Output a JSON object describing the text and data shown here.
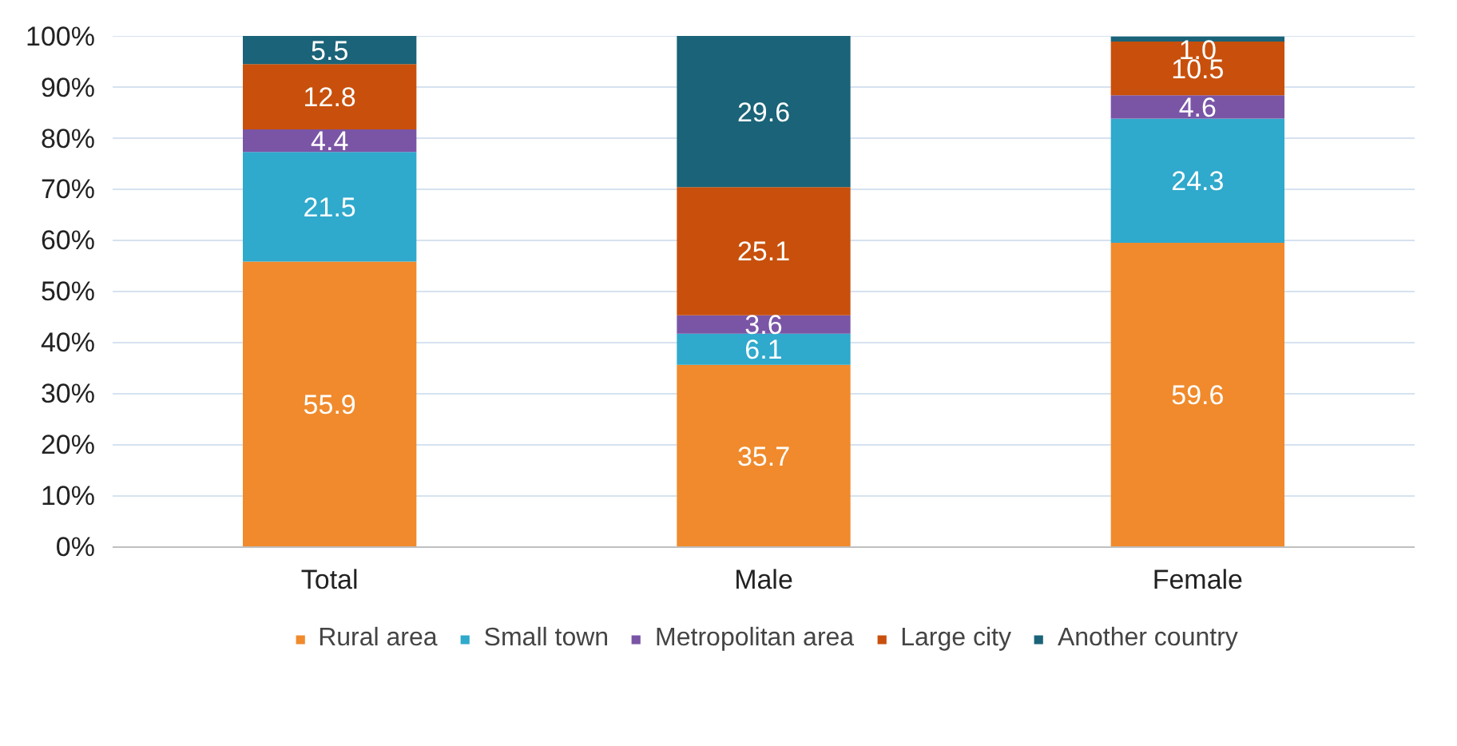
{
  "chart_data": {
    "type": "bar",
    "stacked": true,
    "categories": [
      "Total",
      "Male",
      "Female"
    ],
    "series": [
      {
        "name": "Rural area",
        "color": "#f08a2c",
        "values": [
          55.9,
          35.7,
          59.6
        ],
        "value_labels": [
          "55.9",
          "35.7",
          "59.6"
        ]
      },
      {
        "name": "Small town",
        "color": "#2fa9cc",
        "values": [
          21.5,
          6.1,
          24.3
        ],
        "value_labels": [
          "21.5",
          "6.1",
          "24.3"
        ]
      },
      {
        "name": "Metropolitan area",
        "color": "#7a55a6",
        "values": [
          4.4,
          3.6,
          4.6
        ],
        "value_labels": [
          "4.4",
          "3.6",
          "4.6"
        ]
      },
      {
        "name": "Large city",
        "color": "#c8500c",
        "values": [
          12.8,
          25.1,
          10.5
        ],
        "value_labels": [
          "12.8",
          "25.1",
          "10.5"
        ]
      },
      {
        "name": "Another country",
        "color": "#1a6378",
        "values": [
          5.5,
          29.6,
          1.0
        ],
        "value_labels": [
          "5.5",
          "29.6",
          "1.0"
        ]
      }
    ],
    "ylim": [
      0,
      100.1
    ],
    "yticks": [
      {
        "value": 0,
        "label": "0%"
      },
      {
        "value": 10,
        "label": "10%"
      },
      {
        "value": 20,
        "label": "20%"
      },
      {
        "value": 30,
        "label": "30%"
      },
      {
        "value": 40,
        "label": "40%"
      },
      {
        "value": 50,
        "label": "50%"
      },
      {
        "value": 60,
        "label": "60%"
      },
      {
        "value": 70,
        "label": "70%"
      },
      {
        "value": 80,
        "label": "80%"
      },
      {
        "value": 90,
        "label": "90%"
      },
      {
        "value": 100,
        "label": "100%"
      }
    ],
    "grid": "y",
    "legend": "bottom"
  }
}
